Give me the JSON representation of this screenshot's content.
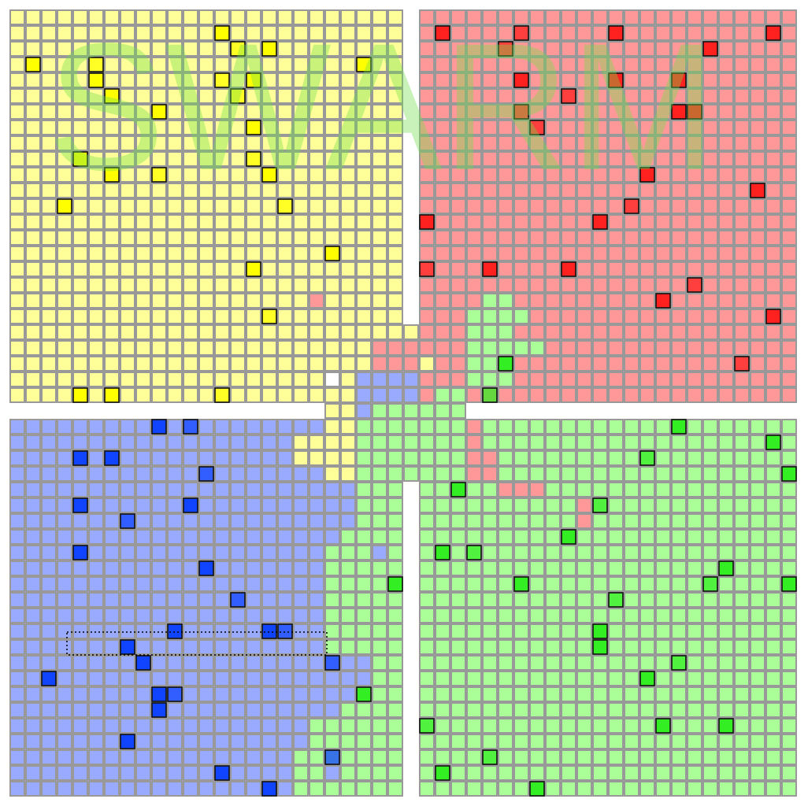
{
  "watermark": "SWARM"
}
